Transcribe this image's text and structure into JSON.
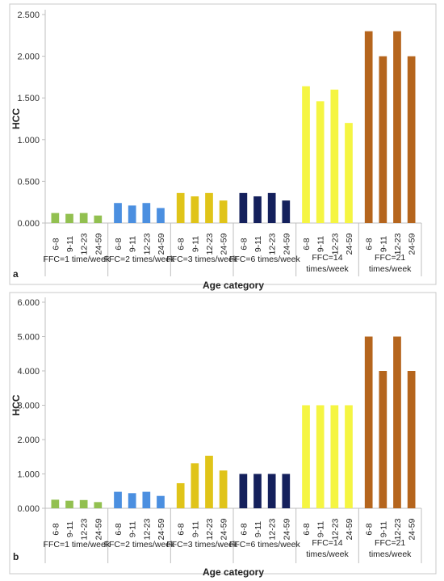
{
  "chart_data": [
    {
      "type": "bar",
      "panel_label": "a",
      "ylabel": "HCC",
      "xlabel": "Age category",
      "ylim": [
        0,
        2.5
      ],
      "yticks": [
        "0.000",
        "0.500",
        "1.000",
        "1.500",
        "2.000",
        "2.500"
      ],
      "ytick_values": [
        0,
        0.5,
        1.0,
        1.5,
        2.0,
        2.5
      ],
      "groups": [
        {
          "label_lines": [
            "FFC=1 time/week"
          ],
          "color": "#92c050",
          "categories": [
            "6-8",
            "9-11",
            "12-23",
            "24-59"
          ],
          "values": [
            0.12,
            0.11,
            0.12,
            0.09
          ]
        },
        {
          "label_lines": [
            "FFC=2 times/week"
          ],
          "color": "#4b8fe0",
          "categories": [
            "6-8",
            "9-11",
            "12-23",
            "24-59"
          ],
          "values": [
            0.24,
            0.21,
            0.24,
            0.18
          ]
        },
        {
          "label_lines": [
            "FFC=3 times/week"
          ],
          "color": "#e0c419",
          "categories": [
            "6-8",
            "9-11",
            "12-23",
            "24-59"
          ],
          "values": [
            0.36,
            0.32,
            0.36,
            0.27
          ]
        },
        {
          "label_lines": [
            "FFC=6 times/week"
          ],
          "color": "#14205c",
          "categories": [
            "6-8",
            "9-11",
            "12-23",
            "24-59"
          ],
          "values": [
            0.36,
            0.32,
            0.36,
            0.27
          ]
        },
        {
          "label_lines": [
            "FFC=14",
            "times/week"
          ],
          "color": "#f5f542",
          "categories": [
            "6-8",
            "9-11",
            "12-23",
            "24-59"
          ],
          "values": [
            1.64,
            1.46,
            1.6,
            1.2
          ]
        },
        {
          "label_lines": [
            "FFC=21",
            "times/week"
          ],
          "color": "#b5651d",
          "categories": [
            "6-8",
            "9-11",
            "12-23",
            "24-59"
          ],
          "values": [
            2.3,
            2.0,
            2.3,
            2.0
          ]
        }
      ]
    },
    {
      "type": "bar",
      "panel_label": "b",
      "ylabel": "HCC",
      "xlabel": "Age category",
      "ylim": [
        0,
        6.0
      ],
      "yticks": [
        "0.000",
        "1.000",
        "2.000",
        "3.000",
        "4.000",
        "5.000",
        "6.000"
      ],
      "ytick_values": [
        0,
        1,
        2,
        3,
        4,
        5,
        6
      ],
      "groups": [
        {
          "label_lines": [
            "FFC=1 time/week"
          ],
          "color": "#92c050",
          "categories": [
            "6-8",
            "9-11",
            "12-23",
            "24-59"
          ],
          "values": [
            0.25,
            0.22,
            0.24,
            0.18
          ]
        },
        {
          "label_lines": [
            "FFC=2 times/week"
          ],
          "color": "#4b8fe0",
          "categories": [
            "6-8",
            "9-11",
            "12-23",
            "24-59"
          ],
          "values": [
            0.48,
            0.44,
            0.48,
            0.36
          ]
        },
        {
          "label_lines": [
            "FFC=3 times/week"
          ],
          "color": "#e0c419",
          "categories": [
            "6-8",
            "9-11",
            "12-23",
            "24-59"
          ],
          "values": [
            0.73,
            1.31,
            1.53,
            1.1
          ]
        },
        {
          "label_lines": [
            "FFC=6 times/week"
          ],
          "color": "#14205c",
          "categories": [
            "6-8",
            "9-11",
            "12-23",
            "24-59"
          ],
          "values": [
            1.0,
            1.0,
            1.0,
            1.0
          ]
        },
        {
          "label_lines": [
            "FFC=14",
            "times/week"
          ],
          "color": "#f5f542",
          "categories": [
            "6-8",
            "9-11",
            "12-23",
            "24-59"
          ],
          "values": [
            3.0,
            3.0,
            3.0,
            3.0
          ]
        },
        {
          "label_lines": [
            "FFC=21",
            "times/week"
          ],
          "color": "#b5651d",
          "categories": [
            "6-8",
            "9-11",
            "12-23",
            "24-59"
          ],
          "values": [
            5.0,
            4.0,
            5.0,
            4.0
          ]
        }
      ]
    }
  ]
}
